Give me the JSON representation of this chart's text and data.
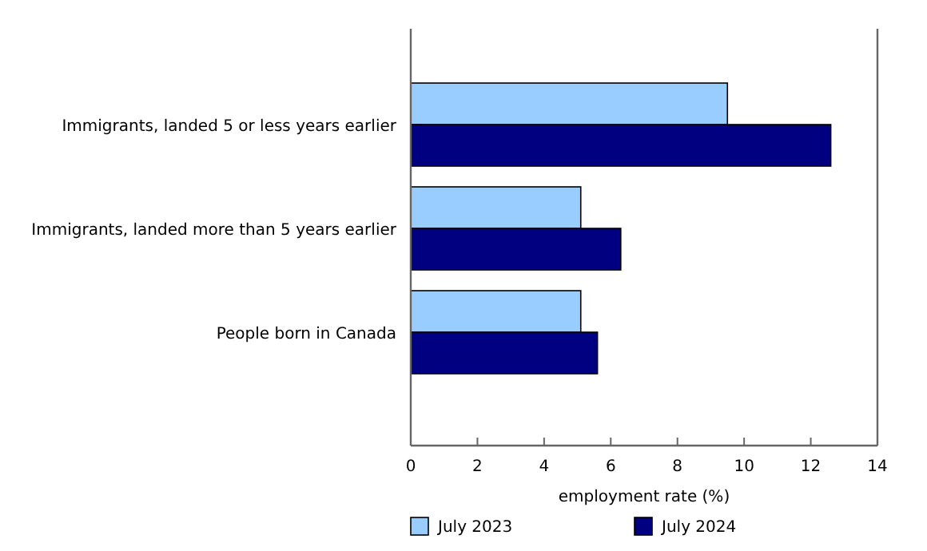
{
  "chart_data": {
    "type": "bar",
    "orientation": "horizontal",
    "categories": [
      "Immigrants, landed 5 or less years earlier",
      "Immigrants, landed more than 5 years earlier",
      "People born in Canada"
    ],
    "series": [
      {
        "name": "July 2023",
        "color": "#99ccff",
        "values": [
          9.5,
          5.1,
          5.1
        ]
      },
      {
        "name": "July 2024",
        "color": "#000080",
        "values": [
          12.6,
          6.3,
          5.6
        ]
      }
    ],
    "xlabel": "employment rate (%)",
    "xlim": [
      0,
      14
    ],
    "xticks": [
      0,
      2,
      4,
      6,
      8,
      10,
      12,
      14
    ],
    "grid": false,
    "legend": "bottom"
  }
}
